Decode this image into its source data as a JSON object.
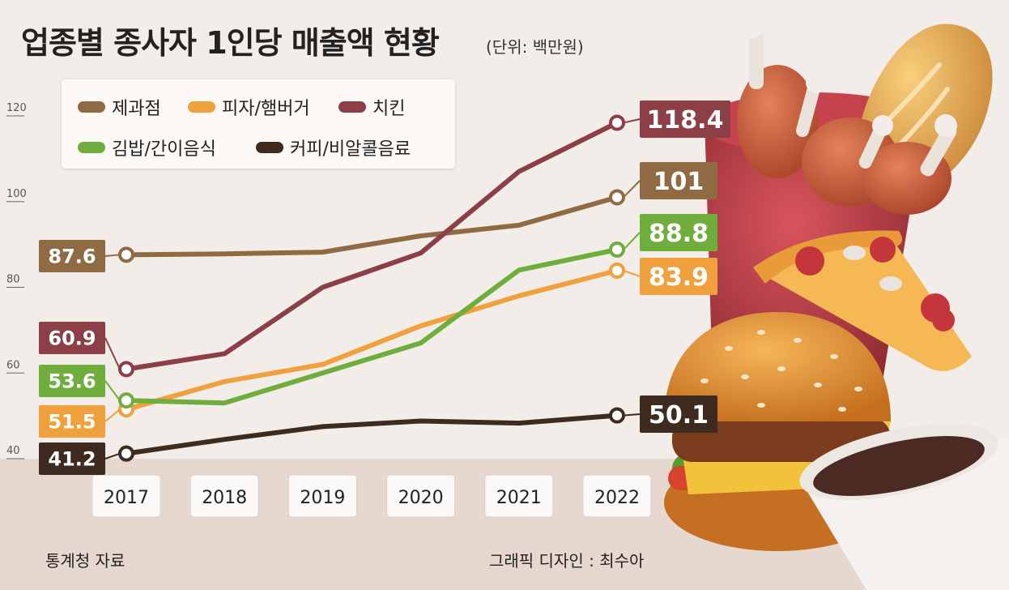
{
  "title": "업종별 종사자 1인당 매출액 현황",
  "unit": "(단위: 백만원)",
  "source": "통계청 자료",
  "credit": "그래픽 디자인 : 최수아",
  "chart_data": {
    "type": "line",
    "categories": [
      "2017",
      "2018",
      "2019",
      "2020",
      "2021",
      "2022"
    ],
    "ylim": [
      40,
      120
    ],
    "yticks": [
      40,
      60,
      80,
      100,
      120
    ],
    "grid": false,
    "legend_position": "top-left",
    "series": [
      {
        "name": "제과점",
        "color": "#8f6a43",
        "values": [
          87.6,
          87.8,
          88.2,
          92.0,
          94.5,
          101
        ]
      },
      {
        "name": "피자/햄버거",
        "color": "#f0a03c",
        "values": [
          51.5,
          58.0,
          62.0,
          71.0,
          78.0,
          83.9
        ]
      },
      {
        "name": "치킨",
        "color": "#8c3f47",
        "values": [
          60.9,
          64.5,
          80.0,
          88.0,
          107.0,
          118.4
        ]
      },
      {
        "name": "김밥/간이음식",
        "color": "#6fae3d",
        "values": [
          53.6,
          53.0,
          60.0,
          67.0,
          84.0,
          88.8
        ]
      },
      {
        "name": "커피/비알콜음료",
        "color": "#3f2a1f",
        "values": [
          41.2,
          44.5,
          47.5,
          48.8,
          48.3,
          50.1
        ]
      }
    ],
    "start_labels": [
      "87.6",
      "51.5",
      "60.9",
      "53.6",
      "41.2"
    ],
    "end_labels": [
      "101",
      "83.9",
      "118.4",
      "88.8",
      "50.1"
    ]
  }
}
